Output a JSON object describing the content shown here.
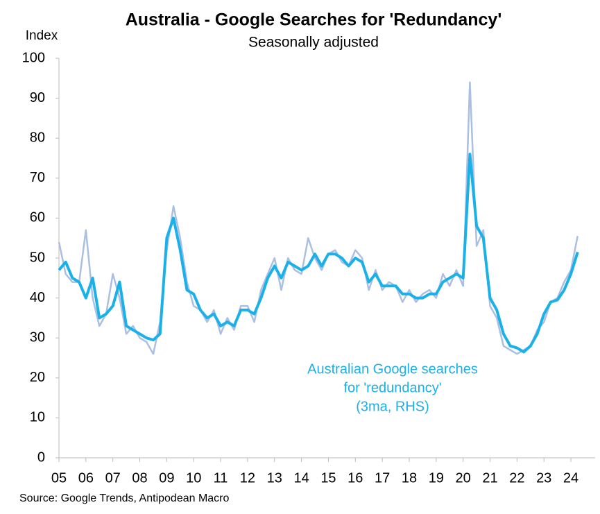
{
  "chart_data": {
    "type": "line",
    "title": "Australia - Google Searches for 'Redundancy'",
    "subtitle": "Seasonally adjusted",
    "ylabel": "Index",
    "source": "Source: Google Trends, Antipodean Macro",
    "annotation": [
      "Australian Google searches",
      "for 'redundancy'",
      "(3ma, RHS)"
    ],
    "annotation_color": "#1ab0e8",
    "x": [
      2005,
      2005.25,
      2005.5,
      2005.75,
      2006,
      2006.25,
      2006.5,
      2006.75,
      2007,
      2007.25,
      2007.5,
      2007.75,
      2008,
      2008.25,
      2008.5,
      2008.75,
      2009,
      2009.25,
      2009.5,
      2009.75,
      2010,
      2010.25,
      2010.5,
      2010.75,
      2011,
      2011.25,
      2011.5,
      2011.75,
      2012,
      2012.25,
      2012.5,
      2012.75,
      2013,
      2013.25,
      2013.5,
      2013.75,
      2014,
      2014.25,
      2014.5,
      2014.75,
      2015,
      2015.25,
      2015.5,
      2015.75,
      2016,
      2016.25,
      2016.5,
      2016.75,
      2017,
      2017.25,
      2017.5,
      2017.75,
      2018,
      2018.25,
      2018.5,
      2018.75,
      2019,
      2019.25,
      2019.5,
      2019.75,
      2020,
      2020.25,
      2020.5,
      2020.75,
      2021,
      2021.25,
      2021.5,
      2021.75,
      2022,
      2022.25,
      2022.5,
      2022.75,
      2023,
      2023.25,
      2023.5,
      2023.75,
      2024,
      2024.25
    ],
    "series": [
      {
        "color": "#aabfe2",
        "width": 2.5,
        "values": [
          54,
          46,
          44,
          44,
          57,
          40,
          33,
          36,
          46,
          40,
          31,
          33,
          30,
          29,
          26,
          34,
          52,
          63,
          55,
          44,
          38,
          37,
          34,
          37,
          31,
          35,
          32,
          38,
          38,
          34,
          42,
          46,
          50,
          42,
          50,
          47,
          46,
          55,
          50,
          47,
          51,
          52,
          49,
          48,
          52,
          50,
          42,
          47,
          42,
          44,
          43,
          39,
          42,
          39,
          41,
          42,
          40,
          46,
          43,
          47,
          43,
          94,
          53,
          57,
          38,
          35,
          28,
          27,
          26,
          27,
          28,
          32,
          34,
          39,
          40,
          44,
          47,
          55.5
        ]
      },
      {
        "color": "#1ab0e8",
        "width": 4,
        "values": [
          47,
          49,
          45,
          44,
          40,
          45,
          35,
          36,
          38,
          44,
          33,
          32,
          31,
          30,
          29.5,
          31,
          55,
          60,
          52,
          42,
          41,
          37,
          35,
          36,
          33,
          34,
          33,
          37,
          37,
          36,
          40,
          45,
          48,
          45,
          49,
          48,
          47,
          48,
          51,
          48,
          51,
          51,
          50,
          48,
          50,
          49,
          44,
          46,
          43,
          43,
          43,
          41,
          41,
          40,
          40,
          41,
          41,
          44,
          45,
          46,
          45,
          76,
          58,
          55,
          40,
          37,
          31,
          28,
          27.5,
          26.5,
          28,
          31,
          36,
          39,
          39.5,
          42,
          46,
          51.5
        ]
      }
    ],
    "xlim": [
      2005,
      2024.9
    ],
    "xticks": [
      {
        "value": 2005,
        "label": "05"
      },
      {
        "value": 2006,
        "label": "06"
      },
      {
        "value": 2007,
        "label": "07"
      },
      {
        "value": 2008,
        "label": "08"
      },
      {
        "value": 2009,
        "label": "09"
      },
      {
        "value": 2010,
        "label": "10"
      },
      {
        "value": 2011,
        "label": "11"
      },
      {
        "value": 2012,
        "label": "12"
      },
      {
        "value": 2013,
        "label": "13"
      },
      {
        "value": 2014,
        "label": "14"
      },
      {
        "value": 2015,
        "label": "15"
      },
      {
        "value": 2016,
        "label": "16"
      },
      {
        "value": 2017,
        "label": "17"
      },
      {
        "value": 2018,
        "label": "18"
      },
      {
        "value": 2019,
        "label": "19"
      },
      {
        "value": 2020,
        "label": "20"
      },
      {
        "value": 2021,
        "label": "21"
      },
      {
        "value": 2022,
        "label": "22"
      },
      {
        "value": 2023,
        "label": "23"
      },
      {
        "value": 2024,
        "label": "24"
      }
    ],
    "ylim": [
      0,
      100
    ],
    "yticks": [
      0,
      10,
      20,
      30,
      40,
      50,
      60,
      70,
      80,
      90,
      100
    ],
    "grid": false
  }
}
